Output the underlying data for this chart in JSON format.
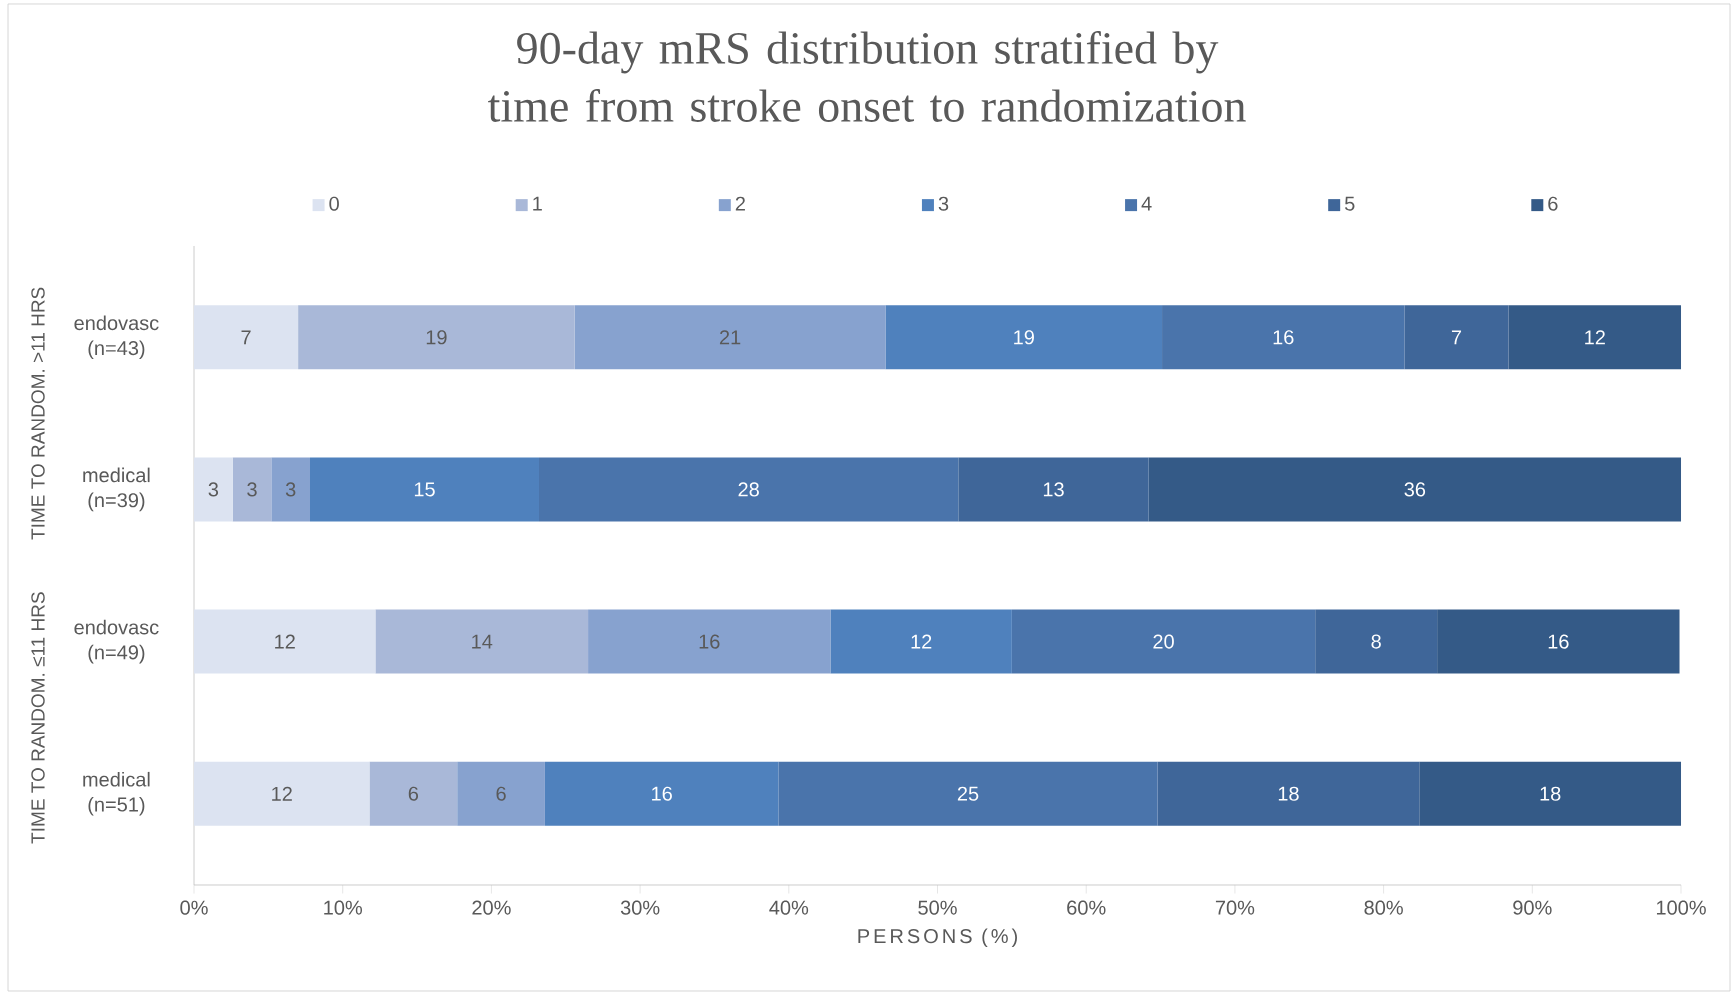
{
  "chart_data": {
    "type": "bar",
    "orientation": "horizontal",
    "stacked": true,
    "title": "90-day mRS distribution stratified by time from stroke onset to randomization",
    "xlabel": "PERSONS (%)",
    "categories": [
      "endovasc (n=43)",
      "medical (n=39)",
      "endovasc (n=49)",
      "medical (n=51)"
    ],
    "series": [
      {
        "name": "0",
        "color": "#dce3f1",
        "values": [
          7.0,
          2.6,
          12.2,
          11.8
        ],
        "value_labels": [
          "7",
          "3",
          "12",
          "12"
        ]
      },
      {
        "name": "1",
        "color": "#a9b8d8",
        "values": [
          18.6,
          2.6,
          14.3,
          5.9
        ],
        "value_labels": [
          "19",
          "3",
          "14",
          "6"
        ]
      },
      {
        "name": "2",
        "color": "#87a2cf",
        "values": [
          20.9,
          2.6,
          16.3,
          5.9
        ],
        "value_labels": [
          "21",
          "3",
          "16",
          "6"
        ]
      },
      {
        "name": "3",
        "color": "#4f81bd",
        "values": [
          18.6,
          15.4,
          12.2,
          15.7
        ],
        "value_labels": [
          "19",
          "15",
          "12",
          "16"
        ]
      },
      {
        "name": "4",
        "color": "#4a74ab",
        "values": [
          16.3,
          28.2,
          20.4,
          25.5
        ],
        "value_labels": [
          "16",
          "28",
          "20",
          "25"
        ]
      },
      {
        "name": "5",
        "color": "#3f6699",
        "values": [
          7.0,
          12.8,
          8.2,
          17.6
        ],
        "value_labels": [
          "7",
          "13",
          "8",
          "18"
        ]
      },
      {
        "name": "6",
        "color": "#345a87",
        "values": [
          11.6,
          35.8,
          16.3,
          17.6
        ],
        "value_labels": [
          "12",
          "36",
          "16",
          "18"
        ]
      }
    ],
    "xlim": [
      0,
      100
    ],
    "xticks": [
      {
        "value": 0,
        "label": "0%"
      },
      {
        "value": 10,
        "label": "10%"
      },
      {
        "value": 20,
        "label": "20%"
      },
      {
        "value": 30,
        "label": "30%"
      },
      {
        "value": 40,
        "label": "40%"
      },
      {
        "value": 50,
        "label": "50%"
      },
      {
        "value": 60,
        "label": "60%"
      },
      {
        "value": 70,
        "label": "70%"
      },
      {
        "value": 80,
        "label": "80%"
      },
      {
        "value": 90,
        "label": "90%"
      },
      {
        "value": 100,
        "label": "100%"
      }
    ],
    "legend": "top",
    "annotations": [
      "TIME TO RANDOM. >11 HRS",
      "TIME TO RANDOM. ≤11 HRS"
    ]
  }
}
